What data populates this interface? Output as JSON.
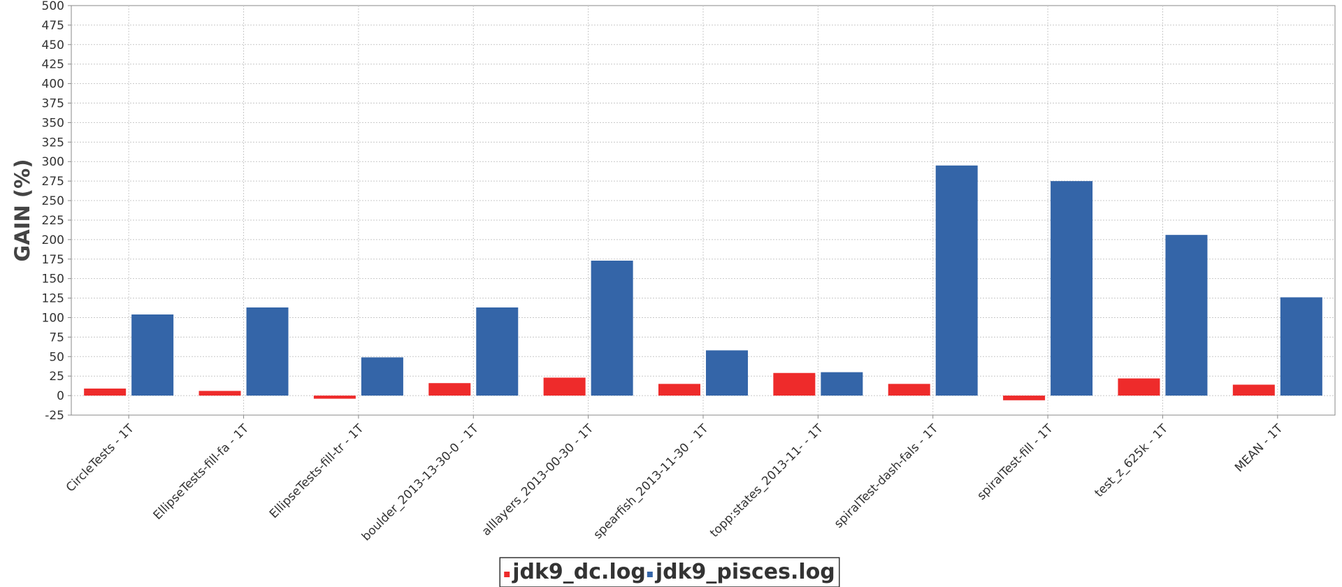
{
  "chart_data": {
    "type": "bar",
    "title": "",
    "xlabel": "",
    "ylabel": "GAIN (%)",
    "ylim": [
      -25,
      500
    ],
    "ytick_step": 25,
    "grid": true,
    "legend_position": "bottom-center",
    "categories": [
      "CircleTests - 1T",
      "EllipseTests-fill-fa - 1T",
      "EllipseTests-fill-tr - 1T",
      "boulder_2013-13-30-0 - 1T",
      "alllayers_2013-00-30 - 1T",
      "spearfish_2013-11-30 - 1T",
      "topp:states_2013-11- - 1T",
      "spiralTest-dash-fals - 1T",
      "spiralTest-fill - 1T",
      "test_z_625k - 1T",
      "MEAN - 1T"
    ],
    "series": [
      {
        "name": "jdk9_dc.log",
        "color": "#ee2b2b",
        "values": [
          9,
          6,
          -4,
          16,
          23,
          15,
          29,
          15,
          -6,
          22,
          14
        ]
      },
      {
        "name": "jdk9_pisces.log",
        "color": "#3465a8",
        "values": [
          104,
          113,
          49,
          113,
          173,
          58,
          30,
          295,
          275,
          206,
          126
        ]
      }
    ]
  }
}
